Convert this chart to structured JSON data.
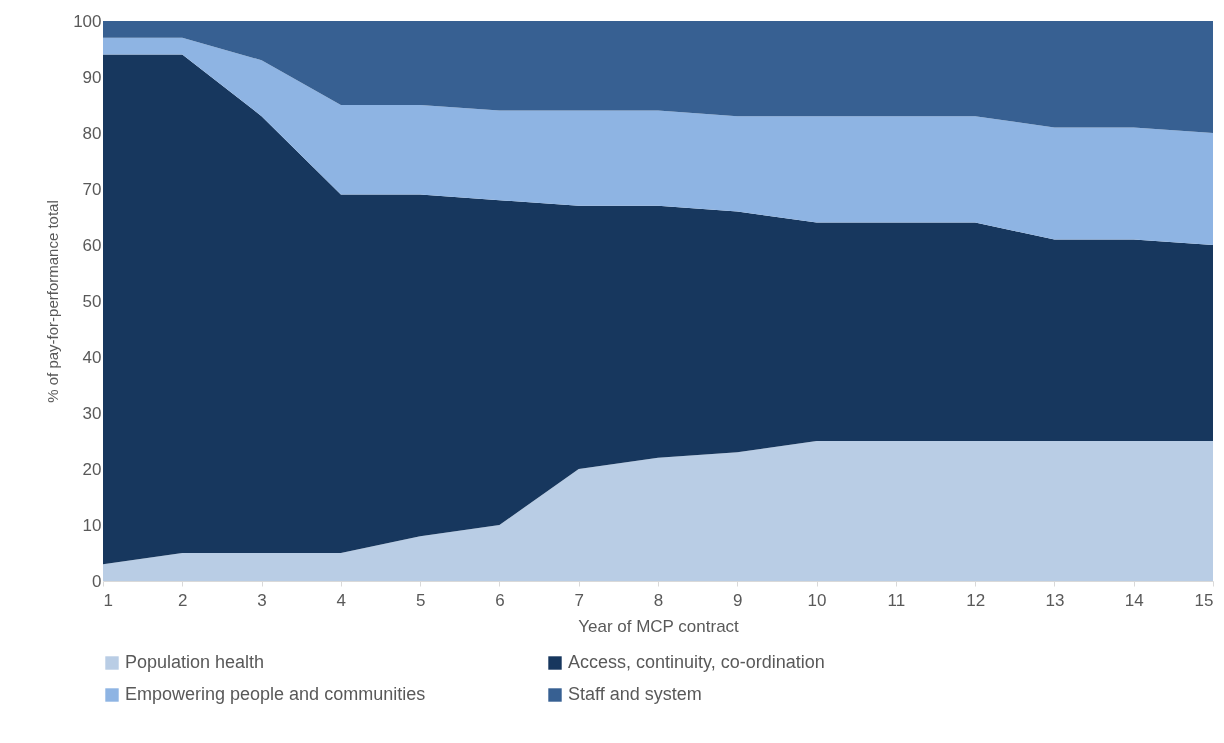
{
  "chart_data": {
    "type": "area",
    "stacked": true,
    "xlabel": "Year of MCP contract",
    "ylabel": "% of pay-for-performance total",
    "x": [
      1,
      2,
      3,
      4,
      5,
      6,
      7,
      8,
      9,
      10,
      11,
      12,
      13,
      14,
      15
    ],
    "xlim": [
      1,
      15
    ],
    "xticks": [
      1,
      2,
      3,
      4,
      5,
      6,
      7,
      8,
      9,
      10,
      11,
      12,
      13,
      14,
      15
    ],
    "ylim": [
      0,
      100
    ],
    "yticks": [
      0,
      10,
      20,
      30,
      40,
      50,
      60,
      70,
      80,
      90,
      100
    ],
    "grid": false,
    "legend": "bottom",
    "series": [
      {
        "name": "Population health",
        "color": "#b9cde5",
        "values": [
          3,
          5,
          5,
          5,
          8,
          10,
          20,
          22,
          23,
          25,
          25,
          25,
          25,
          25,
          25
        ]
      },
      {
        "name": "Access, continuity, co-ordination",
        "color": "#17375e",
        "values": [
          91,
          89,
          78,
          64,
          61,
          58,
          47,
          45,
          43,
          39,
          39,
          39,
          36,
          36,
          35
        ]
      },
      {
        "name": "Empowering people and communities",
        "color": "#8eb4e3",
        "values": [
          3,
          3,
          10,
          16,
          16,
          16,
          17,
          17,
          17,
          19,
          19,
          19,
          20,
          20,
          20
        ]
      },
      {
        "name": "Staff and system",
        "color": "#376092",
        "values": [
          3,
          3,
          7,
          15,
          15,
          16,
          16,
          16,
          17,
          17,
          17,
          17,
          19,
          19,
          20
        ]
      }
    ]
  }
}
